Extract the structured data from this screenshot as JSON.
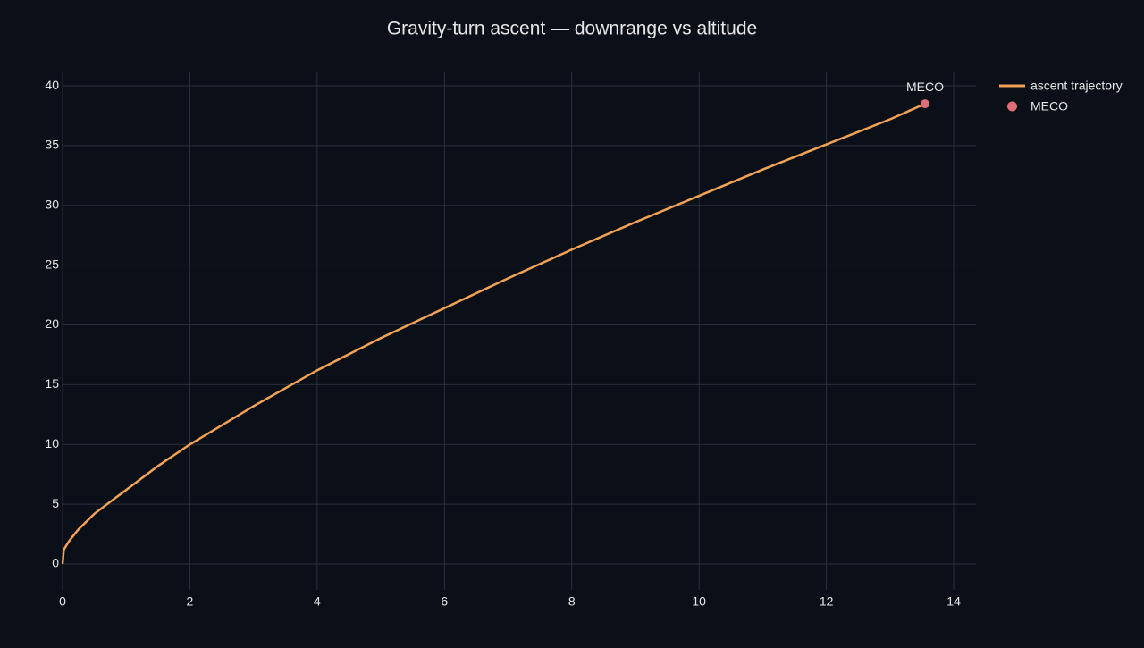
{
  "chart_data": {
    "type": "line",
    "title": "Gravity-turn ascent — downrange vs altitude",
    "series": [
      {
        "name": "ascent trajectory",
        "color": "#f2a254",
        "mode": "lines",
        "x": [
          0,
          0.02,
          0.1,
          0.25,
          0.5,
          1,
          1.5,
          2,
          3,
          4,
          5,
          6,
          7,
          8,
          9,
          10,
          11,
          12,
          13,
          13.55
        ],
        "values": [
          0,
          1.2,
          1.9,
          2.9,
          4.2,
          6.2,
          8.2,
          10.0,
          13.2,
          16.2,
          18.9,
          21.4,
          23.9,
          26.3,
          28.6,
          30.8,
          33.0,
          35.1,
          37.2,
          38.5
        ]
      },
      {
        "name": "MECO",
        "color": "#e06c75",
        "mode": "markers+text",
        "x": [
          13.55
        ],
        "values": [
          38.5
        ],
        "text": [
          "MECO"
        ]
      }
    ],
    "xlim": [
      0,
      14.35
    ],
    "ylim": [
      -2.17,
      41.2
    ],
    "xticks": [
      0,
      2,
      4,
      6,
      8,
      10,
      12,
      14
    ],
    "yticks": [
      0,
      5,
      10,
      15,
      20,
      25,
      30,
      35,
      40
    ],
    "grid": true,
    "legend": "top-right"
  }
}
